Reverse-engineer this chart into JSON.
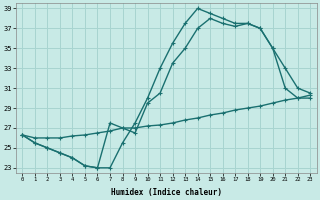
{
  "xlabel": "Humidex (Indice chaleur)",
  "bg_color": "#c8eae6",
  "grid_color": "#a8d4d0",
  "line_color": "#1a7070",
  "xlim": [
    -0.5,
    23.5
  ],
  "ylim": [
    22.5,
    39.5
  ],
  "xticks": [
    0,
    1,
    2,
    3,
    4,
    5,
    6,
    7,
    8,
    9,
    10,
    11,
    12,
    13,
    14,
    15,
    16,
    17,
    18,
    19,
    20,
    21,
    22,
    23
  ],
  "yticks": [
    23,
    25,
    27,
    29,
    31,
    33,
    35,
    37,
    39
  ],
  "curve1_x": [
    0,
    1,
    2,
    3,
    4,
    5,
    6,
    7,
    8,
    9,
    10,
    11,
    12,
    13,
    14,
    15,
    16,
    17,
    18,
    19,
    20,
    21,
    22,
    23
  ],
  "curve1_y": [
    26.3,
    25.5,
    25.0,
    24.5,
    24.0,
    23.2,
    23.0,
    23.0,
    25.5,
    27.5,
    30.0,
    33.0,
    35.5,
    37.5,
    39.0,
    38.5,
    38.0,
    37.5,
    37.5,
    37.0,
    35.0,
    33.0,
    31.0,
    30.5
  ],
  "curve2_x": [
    0,
    1,
    2,
    3,
    4,
    5,
    6,
    7,
    8,
    9,
    10,
    11,
    12,
    13,
    14,
    15,
    16,
    17,
    18,
    19,
    20,
    21,
    22,
    23
  ],
  "curve2_y": [
    26.3,
    25.5,
    25.0,
    24.5,
    24.0,
    23.2,
    23.0,
    27.5,
    27.0,
    26.5,
    29.5,
    30.5,
    33.5,
    35.0,
    37.0,
    38.0,
    37.5,
    37.2,
    37.5,
    37.0,
    35.0,
    31.0,
    30.0,
    30.0
  ],
  "curve3_x": [
    0,
    1,
    2,
    3,
    4,
    5,
    6,
    7,
    8,
    9,
    10,
    11,
    12,
    13,
    14,
    15,
    16,
    17,
    18,
    19,
    20,
    21,
    22,
    23
  ],
  "curve3_y": [
    26.3,
    26.0,
    26.0,
    26.0,
    26.2,
    26.3,
    26.5,
    26.7,
    27.0,
    27.0,
    27.2,
    27.3,
    27.5,
    27.8,
    28.0,
    28.3,
    28.5,
    28.8,
    29.0,
    29.2,
    29.5,
    29.8,
    30.0,
    30.3
  ]
}
